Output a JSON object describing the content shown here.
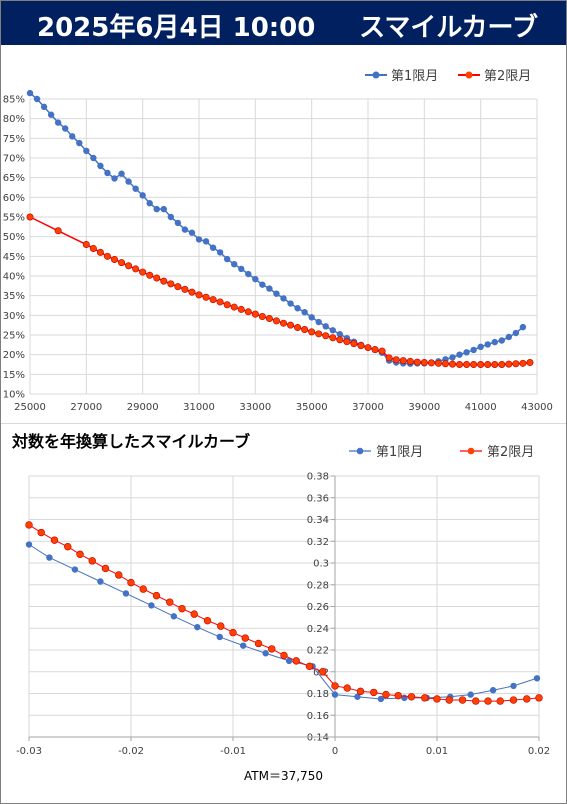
{
  "header": {
    "date": "2025年6月4日 10:00",
    "title": "スマイルカーブ",
    "bg_color": "#002060"
  },
  "colors": {
    "series1": "#4472C4",
    "series2": "#FF0000",
    "series2_fill": "#FF4000"
  },
  "chart_data": [
    {
      "type": "line",
      "title": "",
      "legend_position": "top-right",
      "grid": true,
      "xlim": [
        25000,
        43000
      ],
      "ylim": [
        10,
        85
      ],
      "x_ticks": [
        "25000",
        "27000",
        "29000",
        "31000",
        "33000",
        "35000",
        "37000",
        "39000",
        "41000",
        "43000"
      ],
      "y_ticks": [
        "85%",
        "80%",
        "75%",
        "70%",
        "65%",
        "60%",
        "55%",
        "50%",
        "45%",
        "40%",
        "35%",
        "30%",
        "25%",
        "20%",
        "15%",
        "10%"
      ],
      "series": [
        {
          "name": "第1限月",
          "points": [
            [
              25000,
              86.5
            ],
            [
              25250,
              85
            ],
            [
              25500,
              83
            ],
            [
              25750,
              81
            ],
            [
              26000,
              79
            ],
            [
              26250,
              77.5
            ],
            [
              26500,
              75.5
            ],
            [
              26750,
              73.8
            ],
            [
              27000,
              71.8
            ],
            [
              27250,
              70
            ],
            [
              27500,
              68
            ],
            [
              27750,
              66.2
            ],
            [
              28000,
              64.8
            ],
            [
              28250,
              66
            ],
            [
              28500,
              64
            ],
            [
              28750,
              62.2
            ],
            [
              29000,
              60.5
            ],
            [
              29250,
              58.5
            ],
            [
              29500,
              57
            ],
            [
              29750,
              57
            ],
            [
              30000,
              55
            ],
            [
              30250,
              53.5
            ],
            [
              30500,
              51.8
            ],
            [
              30750,
              51
            ],
            [
              31000,
              49.3
            ],
            [
              31250,
              48.8
            ],
            [
              31500,
              47.2
            ],
            [
              31750,
              46
            ],
            [
              32000,
              44.3
            ],
            [
              32250,
              43
            ],
            [
              32500,
              41.8
            ],
            [
              32750,
              40.5
            ],
            [
              33000,
              39.2
            ],
            [
              33250,
              37.8
            ],
            [
              33500,
              36.8
            ],
            [
              33750,
              35.5
            ],
            [
              34000,
              34.3
            ],
            [
              34250,
              33
            ],
            [
              34500,
              31.8
            ],
            [
              34750,
              30.8
            ],
            [
              35000,
              29.5
            ],
            [
              35250,
              28.3
            ],
            [
              35500,
              27.2
            ],
            [
              35750,
              26.2
            ],
            [
              36000,
              25.2
            ],
            [
              36250,
              24.2
            ],
            [
              36500,
              23.3
            ],
            [
              36750,
              22.5
            ],
            [
              37000,
              21.8
            ],
            [
              37250,
              21.2
            ],
            [
              37500,
              20.5
            ],
            [
              37750,
              18.5
            ],
            [
              38000,
              18
            ],
            [
              38250,
              17.8
            ],
            [
              38500,
              17.7
            ],
            [
              38750,
              17.8
            ],
            [
              39000,
              17.8
            ],
            [
              39250,
              18
            ],
            [
              39500,
              18.3
            ],
            [
              39750,
              18.8
            ],
            [
              40000,
              19.3
            ],
            [
              40250,
              20
            ],
            [
              40500,
              20.6
            ],
            [
              40750,
              21.2
            ],
            [
              41000,
              22
            ],
            [
              41250,
              22.6
            ],
            [
              41500,
              23.2
            ],
            [
              41750,
              23.6
            ],
            [
              42000,
              24.5
            ],
            [
              42250,
              25.5
            ],
            [
              42500,
              27
            ]
          ]
        },
        {
          "name": "第2限月",
          "points": [
            [
              25000,
              55
            ],
            [
              26000,
              51.5
            ],
            [
              27000,
              48
            ],
            [
              27250,
              47
            ],
            [
              27500,
              46
            ],
            [
              27750,
              45
            ],
            [
              28000,
              44.2
            ],
            [
              28250,
              43.4
            ],
            [
              28500,
              42.6
            ],
            [
              28750,
              41.8
            ],
            [
              29000,
              41
            ],
            [
              29250,
              40.2
            ],
            [
              29500,
              39.5
            ],
            [
              29750,
              38.7
            ],
            [
              30000,
              38
            ],
            [
              30250,
              37.3
            ],
            [
              30500,
              36.6
            ],
            [
              30750,
              35.9
            ],
            [
              31000,
              35.2
            ],
            [
              31250,
              34.6
            ],
            [
              31500,
              34
            ],
            [
              31750,
              33.4
            ],
            [
              32000,
              32.7
            ],
            [
              32250,
              32.1
            ],
            [
              32500,
              31.5
            ],
            [
              32750,
              30.9
            ],
            [
              33000,
              30.3
            ],
            [
              33250,
              29.7
            ],
            [
              33500,
              29.2
            ],
            [
              33750,
              28.6
            ],
            [
              34000,
              28
            ],
            [
              34250,
              27.5
            ],
            [
              34500,
              26.9
            ],
            [
              34750,
              26.4
            ],
            [
              35000,
              25.8
            ],
            [
              35250,
              25.3
            ],
            [
              35500,
              24.8
            ],
            [
              35750,
              24.3
            ],
            [
              36000,
              23.8
            ],
            [
              36250,
              23.3
            ],
            [
              36500,
              22.8
            ],
            [
              36750,
              22.3
            ],
            [
              37000,
              21.8
            ],
            [
              37250,
              21.3
            ],
            [
              37500,
              20.9
            ],
            [
              37750,
              19.2
            ],
            [
              38000,
              18.7
            ],
            [
              38250,
              18.5
            ],
            [
              38500,
              18.3
            ],
            [
              38750,
              18.1
            ],
            [
              39000,
              18
            ],
            [
              39250,
              17.9
            ],
            [
              39500,
              17.8
            ],
            [
              39750,
              17.7
            ],
            [
              40000,
              17.6
            ],
            [
              40250,
              17.5
            ],
            [
              40500,
              17.5
            ],
            [
              40750,
              17.5
            ],
            [
              41000,
              17.5
            ],
            [
              41250,
              17.5
            ],
            [
              41500,
              17.5
            ],
            [
              41750,
              17.5
            ],
            [
              42000,
              17.6
            ],
            [
              42250,
              17.7
            ],
            [
              42500,
              17.8
            ],
            [
              42750,
              18
            ]
          ]
        }
      ]
    },
    {
      "type": "line",
      "title": "対数を年換算したスマイルカーブ",
      "legend_position": "top-right",
      "grid": true,
      "xlim": [
        -0.03,
        0.02
      ],
      "ylim": [
        0.14,
        0.38
      ],
      "x_ticks": [
        "-0.03",
        "-0.02",
        "-0.01",
        "0",
        "0.01",
        "0.02"
      ],
      "y_ticks": [
        "0.38",
        "0.36",
        "0.34",
        "0.32",
        "0.3",
        "0.28",
        "0.26",
        "0.24",
        "0.22",
        "0.2",
        "0.18",
        "0.16",
        "0.14"
      ],
      "annotation": "ATM＝37,750",
      "series": [
        {
          "name": "第1限月",
          "points": [
            [
              -0.03,
              0.317
            ],
            [
              -0.028,
              0.305
            ],
            [
              -0.0255,
              0.294
            ],
            [
              -0.023,
              0.283
            ],
            [
              -0.0205,
              0.272
            ],
            [
              -0.018,
              0.261
            ],
            [
              -0.0158,
              0.251
            ],
            [
              -0.0135,
              0.241
            ],
            [
              -0.0113,
              0.232
            ],
            [
              -0.009,
              0.224
            ],
            [
              -0.0068,
              0.217
            ],
            [
              -0.0045,
              0.21
            ],
            [
              -0.0022,
              0.205
            ],
            [
              0,
              0.179
            ],
            [
              0.0022,
              0.177
            ],
            [
              0.0045,
              0.175
            ],
            [
              0.0068,
              0.176
            ],
            [
              0.009,
              0.176
            ],
            [
              0.0113,
              0.177
            ],
            [
              0.0133,
              0.179
            ],
            [
              0.0155,
              0.183
            ],
            [
              0.0175,
              0.187
            ],
            [
              0.0198,
              0.194
            ]
          ]
        },
        {
          "name": "第2限月",
          "points": [
            [
              -0.03,
              0.335
            ],
            [
              -0.0288,
              0.328
            ],
            [
              -0.0275,
              0.321
            ],
            [
              -0.0262,
              0.315
            ],
            [
              -0.025,
              0.308
            ],
            [
              -0.0238,
              0.302
            ],
            [
              -0.0225,
              0.295
            ],
            [
              -0.0212,
              0.289
            ],
            [
              -0.02,
              0.282
            ],
            [
              -0.0188,
              0.276
            ],
            [
              -0.0175,
              0.27
            ],
            [
              -0.0162,
              0.264
            ],
            [
              -0.015,
              0.258
            ],
            [
              -0.0138,
              0.253
            ],
            [
              -0.0125,
              0.247
            ],
            [
              -0.0112,
              0.242
            ],
            [
              -0.01,
              0.236
            ],
            [
              -0.0088,
              0.231
            ],
            [
              -0.0075,
              0.226
            ],
            [
              -0.0062,
              0.221
            ],
            [
              -0.005,
              0.215
            ],
            [
              -0.0038,
              0.21
            ],
            [
              -0.0025,
              0.205
            ],
            [
              -0.0012,
              0.2
            ],
            [
              0,
              0.187
            ],
            [
              0.0012,
              0.185
            ],
            [
              0.0025,
              0.182
            ],
            [
              0.0038,
              0.181
            ],
            [
              0.005,
              0.179
            ],
            [
              0.0062,
              0.178
            ],
            [
              0.0075,
              0.177
            ],
            [
              0.0088,
              0.176
            ],
            [
              0.01,
              0.175
            ],
            [
              0.0112,
              0.174
            ],
            [
              0.0125,
              0.174
            ],
            [
              0.0138,
              0.173
            ],
            [
              0.015,
              0.173
            ],
            [
              0.0162,
              0.173
            ],
            [
              0.0175,
              0.174
            ],
            [
              0.0188,
              0.175
            ],
            [
              0.02,
              0.176
            ]
          ]
        }
      ]
    }
  ]
}
